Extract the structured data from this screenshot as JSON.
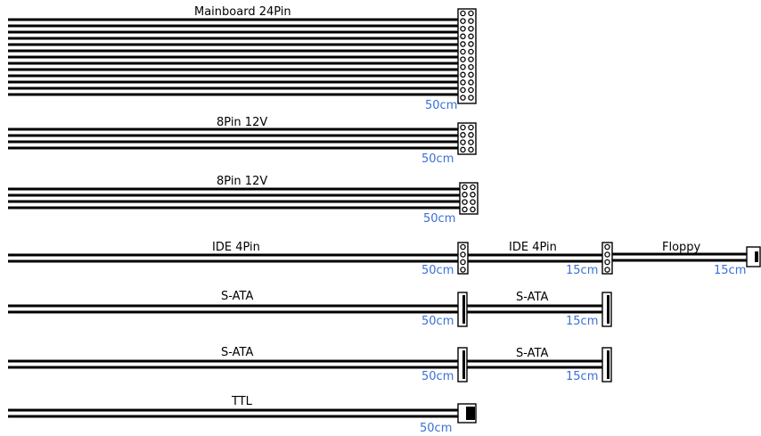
{
  "cables": [
    {
      "id": "mainboard-24pin",
      "label": "Mainboard 24Pin",
      "length": "50cm",
      "connector": "24pin"
    },
    {
      "id": "cpu-8pin-1",
      "label": "8Pin 12V",
      "length": "50cm",
      "connector": "8pin"
    },
    {
      "id": "cpu-8pin-2",
      "label": "8Pin 12V",
      "length": "50cm",
      "connector": "8pin"
    },
    {
      "id": "ide-chain",
      "segments": [
        {
          "label": "IDE 4Pin",
          "length": "50cm",
          "connector": "molex"
        },
        {
          "label": "IDE 4Pin",
          "length": "15cm",
          "connector": "molex"
        },
        {
          "label": "Floppy",
          "length": "15cm",
          "connector": "floppy"
        }
      ]
    },
    {
      "id": "sata-chain-1",
      "segments": [
        {
          "label": "S-ATA",
          "length": "50cm",
          "connector": "sata"
        },
        {
          "label": "S-ATA",
          "length": "15cm",
          "connector": "sata"
        }
      ]
    },
    {
      "id": "sata-chain-2",
      "segments": [
        {
          "label": "S-ATA",
          "length": "50cm",
          "connector": "sata"
        },
        {
          "label": "S-ATA",
          "length": "15cm",
          "connector": "sata"
        }
      ]
    },
    {
      "id": "ttl",
      "label": "TTL",
      "length": "50cm",
      "connector": "ttl"
    }
  ],
  "colors": {
    "wire": "#000000",
    "length_text": "#3a6fd8"
  }
}
